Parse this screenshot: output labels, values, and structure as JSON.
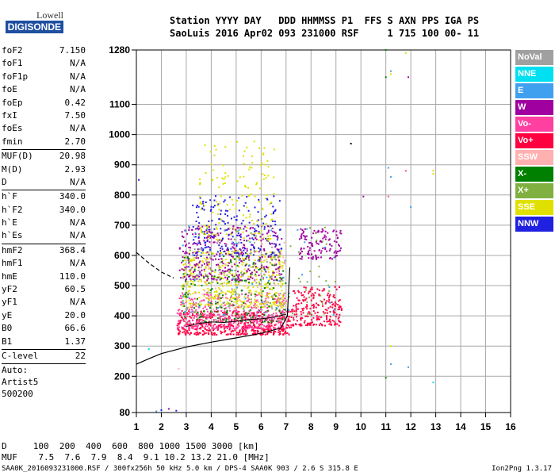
{
  "logo": {
    "line1": "Lowell",
    "line2": "DIGISONDE"
  },
  "header": {
    "line1": "Station YYYY DAY   DDD HHMMSS P1  FFS S AXN PPS IGA PS",
    "line2": "SaoLuis 2016 Apr02 093 231000 RSF     1 715 100 00- 11"
  },
  "params": {
    "group1": [
      {
        "k": "foF2",
        "v": "7.150"
      },
      {
        "k": "foF1",
        "v": "N/A"
      },
      {
        "k": "foF1p",
        "v": "N/A"
      },
      {
        "k": "foE",
        "v": "N/A"
      },
      {
        "k": "foEp",
        "v": "0.42"
      },
      {
        "k": "fxI",
        "v": "7.50"
      },
      {
        "k": "foEs",
        "v": "N/A"
      },
      {
        "k": "fmin",
        "v": "2.70"
      }
    ],
    "group2": [
      {
        "k": "MUF(D)",
        "v": "20.98"
      },
      {
        "k": "M(D)",
        "v": "2.93"
      },
      {
        "k": "D",
        "v": "N/A"
      }
    ],
    "group3": [
      {
        "k": "h`F",
        "v": "340.0"
      },
      {
        "k": "h`F2",
        "v": "340.0"
      },
      {
        "k": "h`E",
        "v": "N/A"
      },
      {
        "k": "h`Es",
        "v": "N/A"
      }
    ],
    "group4": [
      {
        "k": "hmF2",
        "v": "368.4"
      },
      {
        "k": "hmF1",
        "v": "N/A"
      },
      {
        "k": "hmE",
        "v": "110.0"
      },
      {
        "k": "yF2",
        "v": "60.5"
      },
      {
        "k": "yF1",
        "v": "N/A"
      },
      {
        "k": "yE",
        "v": "20.0"
      },
      {
        "k": "B0",
        "v": "66.6"
      },
      {
        "k": "B1",
        "v": "1.37"
      }
    ],
    "group5": [
      {
        "k": "C-level",
        "v": "22"
      }
    ],
    "auto": [
      "Auto:",
      "Artist5",
      "500200"
    ]
  },
  "legend": [
    {
      "label": "NoVal",
      "color": "#a0a0a0"
    },
    {
      "label": "NNE",
      "color": "#00e0f0"
    },
    {
      "label": "E",
      "color": "#40a0f0"
    },
    {
      "label": "W",
      "color": "#a000a0"
    },
    {
      "label": "Vo-",
      "color": "#ff40a0"
    },
    {
      "label": "Vo+",
      "color": "#ff0040"
    },
    {
      "label": "SSW",
      "color": "#ffb0b0"
    },
    {
      "label": "X-",
      "color": "#008000"
    },
    {
      "label": "X+",
      "color": "#80b040"
    },
    {
      "label": "SSE",
      "color": "#e0e000"
    },
    {
      "label": "NNW",
      "color": "#2020e0"
    }
  ],
  "footer": {
    "line1": "D     100  200  400  600  800 1000 1500 3000 [km]",
    "line2": "MUF    7.5  7.6  7.9  8.4  9.1 10.2 13.2 21.0 [MHz]",
    "source": "SAA0K_2016093231000.RSF / 300fx256h 50 kHz 5.0 km / DPS-4 SAA0K 903 / 2.6 S 315.8 E",
    "version": "Ion2Png 1.3.17"
  },
  "chart_data": {
    "type": "scatter",
    "x": [
      1,
      2,
      3,
      4,
      5,
      6,
      7,
      8,
      9,
      10,
      11,
      12,
      13,
      14,
      15,
      16
    ],
    "xlim": [
      1,
      16
    ],
    "ylim": [
      80,
      1280
    ],
    "yticks": [
      80,
      200,
      300,
      400,
      500,
      600,
      700,
      800,
      900,
      1000,
      1100,
      1280
    ],
    "grid": true,
    "legend_placement": "right",
    "profile_curve": {
      "x": [
        1.0,
        1.5,
        2.0,
        3.0,
        4.0,
        5.0,
        6.0,
        6.8,
        7.05,
        7.15
      ],
      "y": [
        240,
        258,
        275,
        297,
        313,
        327,
        342,
        360,
        400,
        560
      ]
    },
    "dashed_curve": {
      "x": [
        1.0,
        1.5,
        2.0,
        2.5
      ],
      "y": [
        610,
        575,
        545,
        525
      ]
    },
    "trace_curve": {
      "x": [
        3.0,
        3.5,
        4.0,
        4.5,
        5.0,
        5.5,
        6.0,
        6.5,
        7.0
      ],
      "y": [
        365,
        375,
        380,
        378,
        382,
        388,
        390,
        395,
        405
      ]
    },
    "clusters": [
      {
        "x": [
          2.6,
          7.2
        ],
        "y": [
          340,
          420
        ],
        "color": "#ff0040",
        "n": 520
      },
      {
        "x": [
          2.6,
          7.0
        ],
        "y": [
          360,
          480
        ],
        "color": "#ff40a0",
        "n": 420
      },
      {
        "x": [
          2.8,
          6.9
        ],
        "y": [
          430,
          620
        ],
        "color": "#e0e000",
        "n": 460
      },
      {
        "x": [
          2.7,
          6.8
        ],
        "y": [
          520,
          700
        ],
        "color": "#a000a0",
        "n": 360
      },
      {
        "x": [
          3.2,
          6.8
        ],
        "y": [
          600,
          800
        ],
        "color": "#2020e0",
        "n": 200
      },
      {
        "x": [
          3.5,
          6.5
        ],
        "y": [
          650,
          980
        ],
        "color": "#e0e000",
        "n": 150
      },
      {
        "x": [
          7.2,
          9.2
        ],
        "y": [
          370,
          500
        ],
        "color": "#ff0040",
        "n": 220
      },
      {
        "x": [
          7.5,
          9.2
        ],
        "y": [
          590,
          690
        ],
        "color": "#a000a0",
        "n": 120
      },
      {
        "x": [
          2.8,
          7.0
        ],
        "y": [
          380,
          600
        ],
        "color": "#008000",
        "n": 160
      },
      {
        "x": [
          2.8,
          7.0
        ],
        "y": [
          380,
          650
        ],
        "color": "#a0a0a0",
        "n": 110
      },
      {
        "x": [
          2.8,
          9.0
        ],
        "y": [
          400,
          700
        ],
        "color": "#40a0f0",
        "n": 70
      },
      {
        "x": [
          2.8,
          9.0
        ],
        "y": [
          400,
          700
        ],
        "color": "#80b040",
        "n": 90
      },
      {
        "x": [
          2.8,
          7.0
        ],
        "y": [
          400,
          650
        ],
        "color": "#ffb0b0",
        "n": 60
      }
    ],
    "isolated": [
      {
        "x": 11.0,
        "y": 1280,
        "color": "#008000"
      },
      {
        "x": 11.2,
        "y": 1200,
        "color": "#e0e000"
      },
      {
        "x": 11.0,
        "y": 1190,
        "color": "#008000"
      },
      {
        "x": 11.2,
        "y": 1210,
        "color": "#40a0f0"
      },
      {
        "x": 11.9,
        "y": 1190,
        "color": "#a000a0"
      },
      {
        "x": 11.8,
        "y": 1270,
        "color": "#e0e000"
      },
      {
        "x": 11.1,
        "y": 890,
        "color": "#40a0f0"
      },
      {
        "x": 11.2,
        "y": 860,
        "color": "#40a0f0"
      },
      {
        "x": 11.8,
        "y": 880,
        "color": "#ff40a0"
      },
      {
        "x": 12.0,
        "y": 760,
        "color": "#40a0f0"
      },
      {
        "x": 11.1,
        "y": 795,
        "color": "#ff40a0"
      },
      {
        "x": 12.9,
        "y": 870,
        "color": "#e0e000"
      },
      {
        "x": 12.9,
        "y": 880,
        "color": "#e0e000"
      },
      {
        "x": 10.1,
        "y": 795,
        "color": "#a000a0"
      },
      {
        "x": 9.6,
        "y": 970,
        "color": "#000000"
      },
      {
        "x": 11.2,
        "y": 300,
        "color": "#e0e000"
      },
      {
        "x": 11.2,
        "y": 240,
        "color": "#40a0f0"
      },
      {
        "x": 11.0,
        "y": 195,
        "color": "#008000"
      },
      {
        "x": 11.9,
        "y": 230,
        "color": "#40a0f0"
      },
      {
        "x": 12.9,
        "y": 180,
        "color": "#00e0f0"
      },
      {
        "x": 1.1,
        "y": 850,
        "color": "#2020e0"
      },
      {
        "x": 1.5,
        "y": 290,
        "color": "#00e0f0"
      },
      {
        "x": 2.0,
        "y": 88,
        "color": "#2020e0"
      },
      {
        "x": 2.3,
        "y": 92,
        "color": "#a000a0"
      },
      {
        "x": 2.6,
        "y": 86,
        "color": "#2020e0"
      },
      {
        "x": 1.8,
        "y": 84,
        "color": "#40a0f0"
      },
      {
        "x": 2.7,
        "y": 225,
        "color": "#ffb0b0"
      }
    ]
  }
}
